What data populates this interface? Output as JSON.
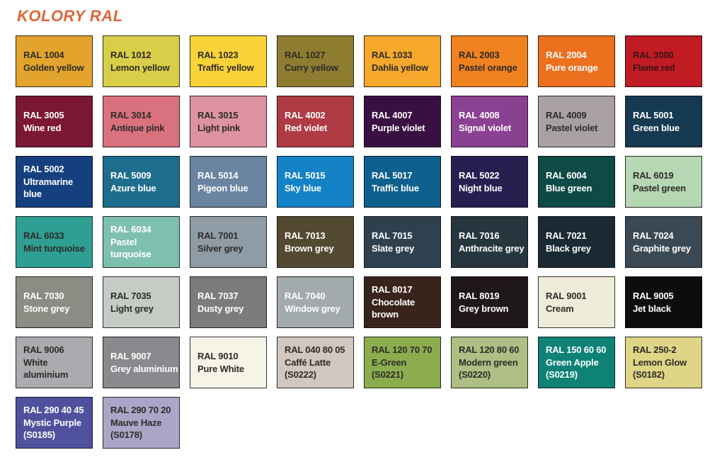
{
  "page": {
    "title": "KOLORY RAL",
    "accent_color": "#E0653A",
    "background": "#FFFFFF"
  },
  "swatches": [
    {
      "code": "RAL 1004",
      "name": "Golden yellow",
      "bg": "#E2A42C",
      "fg": "#2E2B28"
    },
    {
      "code": "RAL 1012",
      "name": "Lemon yellow",
      "bg": "#D9CE48",
      "fg": "#2E2B28"
    },
    {
      "code": "RAL 1023",
      "name": "Traffic yellow",
      "bg": "#F9D338",
      "fg": "#2E2B28"
    },
    {
      "code": "RAL 1027",
      "name": "Curry yellow",
      "bg": "#8E7D31",
      "fg": "#2E2B28"
    },
    {
      "code": "RAL 1033",
      "name": "Dahlia yellow",
      "bg": "#F5A82B",
      "fg": "#2E2B28"
    },
    {
      "code": "RAL 2003",
      "name": "Pastel orange",
      "bg": "#F0811F",
      "fg": "#2E2B28"
    },
    {
      "code": "RAL 2004",
      "name": "Pure orange",
      "bg": "#ED701E",
      "fg": "#FFFFFF"
    },
    {
      "code": "RAL 3000",
      "name": "Flame red",
      "bg": "#C11B24",
      "fg": "#3A1412"
    },
    {
      "code": "RAL 3005",
      "name": "Wine red",
      "bg": "#7C1733",
      "fg": "#FFFFFF"
    },
    {
      "code": "RAL 3014",
      "name": "Antique pink",
      "bg": "#D9717F",
      "fg": "#2E2B28"
    },
    {
      "code": "RAL 3015",
      "name": "Light pink",
      "bg": "#DD93A0",
      "fg": "#2E2B28"
    },
    {
      "code": "RAL 4002",
      "name": "Red violet",
      "bg": "#AF3B44",
      "fg": "#FFFFFF"
    },
    {
      "code": "RAL 4007",
      "name": "Purple violet",
      "bg": "#3A1042",
      "fg": "#FFFFFF"
    },
    {
      "code": "RAL 4008",
      "name": "Signal violet",
      "bg": "#8B4191",
      "fg": "#FFFFFF"
    },
    {
      "code": "RAL 4009",
      "name": "Pastel violet",
      "bg": "#A8A0A5",
      "fg": "#2E2B28"
    },
    {
      "code": "RAL 5001",
      "name": "Green blue",
      "bg": "#153A51",
      "fg": "#FFFFFF"
    },
    {
      "code": "RAL 5002",
      "name": "Ultramarine blue",
      "bg": "#14407F",
      "fg": "#FFFFFF"
    },
    {
      "code": "RAL 5009",
      "name": "Azure blue",
      "bg": "#1E6D8D",
      "fg": "#FFFFFF"
    },
    {
      "code": "RAL 5014",
      "name": "Pigeon blue",
      "bg": "#6B84A2",
      "fg": "#FFFFFF"
    },
    {
      "code": "RAL 5015",
      "name": "Sky blue",
      "bg": "#1482C6",
      "fg": "#FFFFFF"
    },
    {
      "code": "RAL 5017",
      "name": "Traffic blue",
      "bg": "#0E608F",
      "fg": "#FFFFFF"
    },
    {
      "code": "RAL 5022",
      "name": "Night blue",
      "bg": "#262051",
      "fg": "#FFFFFF"
    },
    {
      "code": "RAL 6004",
      "name": "Blue green",
      "bg": "#0E4B46",
      "fg": "#FFFFFF"
    },
    {
      "code": "RAL 6019",
      "name": "Pastel green",
      "bg": "#B5D7B3",
      "fg": "#2E2B28"
    },
    {
      "code": "RAL 6033",
      "name": "Mint turquoise",
      "bg": "#2F9E93",
      "fg": "#2E2B28"
    },
    {
      "code": "RAL 6034",
      "name": "Pastel turquoise",
      "bg": "#7EC0B0",
      "fg": "#FFFFFF"
    },
    {
      "code": "RAL 7001",
      "name": "Silver grey",
      "bg": "#8F9BA5",
      "fg": "#2E2B28"
    },
    {
      "code": "RAL 7013",
      "name": "Brown grey",
      "bg": "#544931",
      "fg": "#FFFFFF"
    },
    {
      "code": "RAL 7015",
      "name": "Slate grey",
      "bg": "#2F404E",
      "fg": "#FFFFFF"
    },
    {
      "code": "RAL 7016",
      "name": "Anthracite grey",
      "bg": "#26363F",
      "fg": "#FFFFFF"
    },
    {
      "code": "RAL 7021",
      "name": "Black grey",
      "bg": "#1A2A34",
      "fg": "#FFFFFF"
    },
    {
      "code": "RAL 7024",
      "name": "Graphite grey",
      "bg": "#3A4954",
      "fg": "#FFFFFF"
    },
    {
      "code": "RAL 7030",
      "name": "Stone grey",
      "bg": "#8B8C84",
      "fg": "#FFFFFF"
    },
    {
      "code": "RAL 7035",
      "name": "Light grey",
      "bg": "#C5CCC6",
      "fg": "#2E2B28"
    },
    {
      "code": "RAL 7037",
      "name": "Dusty grey",
      "bg": "#7A7D7C",
      "fg": "#FFFFFF"
    },
    {
      "code": "RAL 7040",
      "name": "Window grey",
      "bg": "#A2AAAE",
      "fg": "#FFFFFF"
    },
    {
      "code": "RAL 8017",
      "name": "Chocolate brown",
      "bg": "#39241C",
      "fg": "#FFFFFF"
    },
    {
      "code": "RAL 8019",
      "name": "Grey brown",
      "bg": "#201718",
      "fg": "#FFFFFF"
    },
    {
      "code": "RAL 9001",
      "name": "Cream",
      "bg": "#EFEBD9",
      "fg": "#2E2B28"
    },
    {
      "code": "RAL 9005",
      "name": "Jet black",
      "bg": "#0C0D0F",
      "fg": "#FFFFFF"
    },
    {
      "code": "RAL 9006",
      "name": "White aluminium",
      "bg": "#A9ABAE",
      "fg": "#2E2B28"
    },
    {
      "code": "RAL 9007",
      "name": "Grey aluminium",
      "bg": "#898A8D",
      "fg": "#FFFFFF"
    },
    {
      "code": "RAL 9010",
      "name": "Pure White",
      "bg": "#F6F4E7",
      "fg": "#2E2B28"
    },
    {
      "code": "RAL 040 80 05",
      "name": "Caffé Latte",
      "sub": "(S0222)",
      "bg": "#D2C7BE",
      "fg": "#2E2B28"
    },
    {
      "code": "RAL 120 70 70",
      "name": "E-Green",
      "sub": "(S0221)",
      "bg": "#8CAD4E",
      "fg": "#2E2B28"
    },
    {
      "code": "RAL 120 80 60",
      "name": "Modern green",
      "sub": "(S0220)",
      "bg": "#AEBE84",
      "fg": "#2E2B28"
    },
    {
      "code": "RAL 150 60 60",
      "name": "Green Apple",
      "sub": "(S0219)",
      "bg": "#0D8275",
      "fg": "#FFFFFF"
    },
    {
      "code": "RAL 250-2",
      "name": "Lemon Glow",
      "sub": "(S0182)",
      "bg": "#DED586",
      "fg": "#2E2B28"
    },
    {
      "code": "RAL 290 40 45",
      "name": "Mystic Purple",
      "sub": "(S0185)",
      "bg": "#50519E",
      "fg": "#FFFFFF"
    },
    {
      "code": "RAL 290 70 20",
      "name": "Mauve Haze",
      "sub": "(S0178)",
      "bg": "#ABA6C8",
      "fg": "#2E2B28"
    }
  ]
}
